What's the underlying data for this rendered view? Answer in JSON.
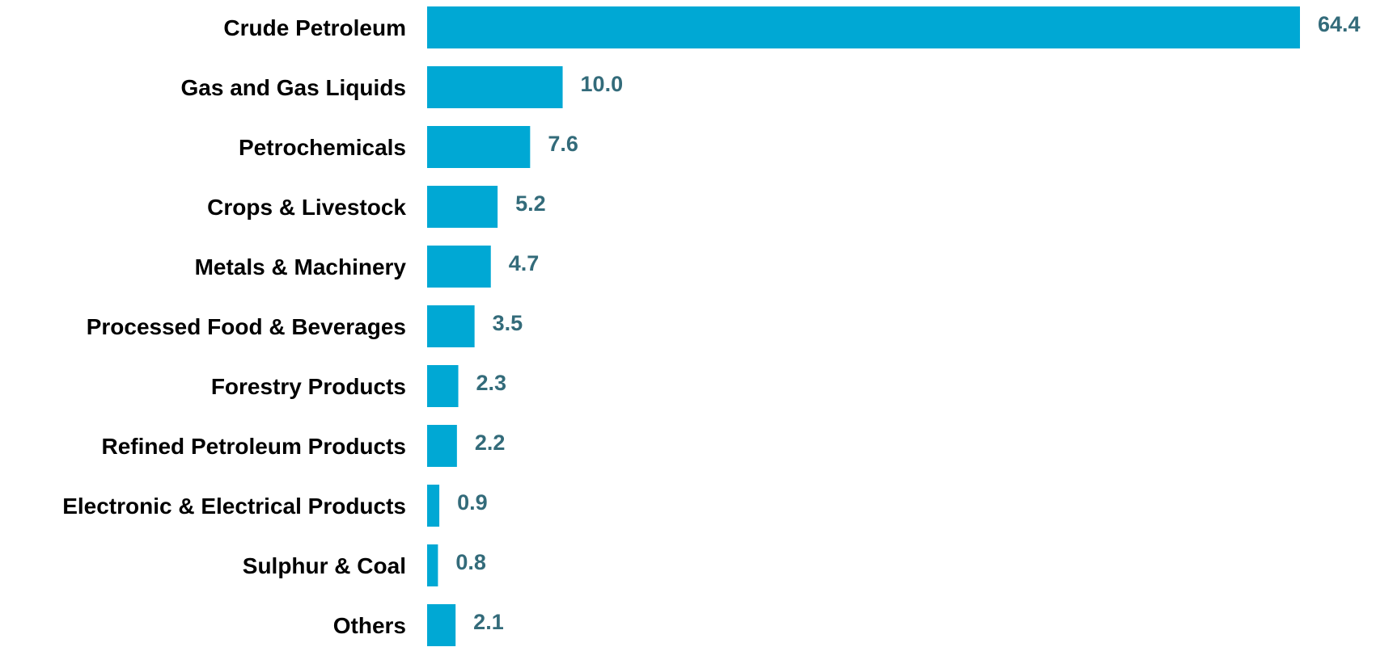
{
  "chart_data": {
    "type": "bar",
    "orientation": "horizontal",
    "categories": [
      "Crude Petroleum",
      "Gas and Gas Liquids",
      "Petrochemicals",
      "Crops & Livestock",
      "Metals & Machinery",
      "Processed Food & Beverages",
      "Forestry  Products",
      "Refined Petroleum Products",
      "Electronic & Electrical Products",
      "Sulphur & Coal",
      "Others"
    ],
    "values": [
      64.4,
      10.0,
      7.6,
      5.2,
      4.7,
      3.5,
      2.3,
      2.2,
      0.9,
      0.8,
      2.1
    ],
    "value_labels": [
      "64.4",
      "10.0",
      "7.6",
      "5.2",
      "4.7",
      "3.5",
      "2.3",
      "2.2",
      "0.9",
      "0.8",
      "2.1"
    ],
    "title": "",
    "xlabel": "",
    "ylabel": "",
    "xlim": [
      0,
      64.4
    ],
    "grid": false,
    "legend": "none",
    "colors": {
      "bar": "#00a8d4",
      "value_label": "#336b7a",
      "category_label": "#000000"
    }
  }
}
